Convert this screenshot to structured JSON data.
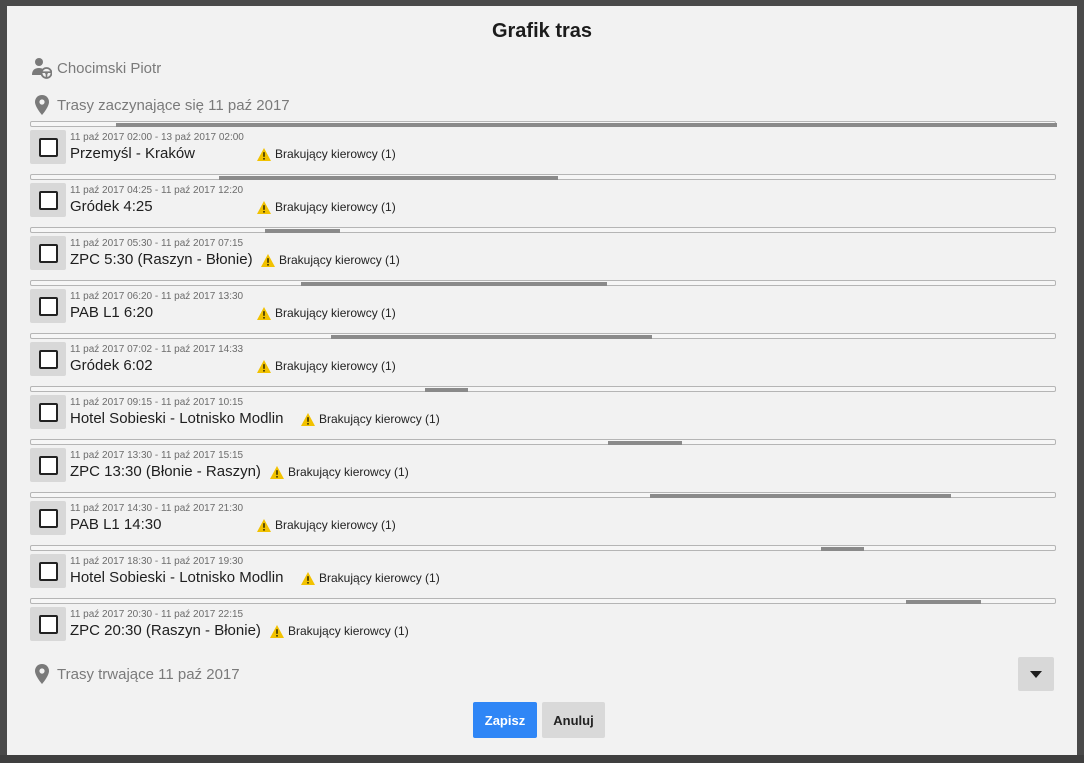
{
  "modal": {
    "title": "Grafik tras"
  },
  "driver": {
    "name": "Chocimski Piotr",
    "icon": "driver-steering-wheel-icon"
  },
  "start_date": {
    "label": "Trasy zaczynające się 11 paź 2017",
    "icon": "map-pin-icon"
  },
  "footer_filter": {
    "label": "Trasy trwające 11 paź 2017",
    "icon": "map-pin-icon"
  },
  "header_timeline": {
    "fill_start": 0.083,
    "fill_end": 1.0
  },
  "routes": [
    {
      "time": "11 paź 2017 02:00 - 13 paź 2017 02:00",
      "name": "Przemyśl - Kraków",
      "warning": "Brakujący kierowcy (1)",
      "fill_start": 0.183,
      "fill_end": 0.513,
      "checked": false
    },
    {
      "time": "11 paź 2017 04:25 - 11 paź 2017 12:20",
      "name": "Gródek 4:25",
      "warning": "Brakujący kierowcy (1)",
      "fill_start": 0.228,
      "fill_end": 0.301,
      "checked": false
    },
    {
      "time": "11 paź 2017 05:30 - 11 paź 2017 07:15",
      "name": "ZPC 5:30 (Raszyn - Błonie)",
      "warning": "Brakujący kierowcy (1)",
      "fill_start": 0.263,
      "fill_end": 0.561,
      "checked": false
    },
    {
      "time": "11 paź 2017 06:20 - 11 paź 2017 13:30",
      "name": "PAB L1 6:20",
      "warning": "Brakujący kierowcy (1)",
      "fill_start": 0.292,
      "fill_end": 0.605,
      "checked": false
    },
    {
      "time": "11 paź 2017 07:02 - 11 paź 2017 14:33",
      "name": "Gródek 6:02",
      "warning": "Brakujący kierowcy (1)",
      "fill_start": 0.384,
      "fill_end": 0.426,
      "checked": false
    },
    {
      "time": "11 paź 2017 09:15 - 11 paź 2017 10:15",
      "name": "Hotel Sobieski - Lotnisko Modlin",
      "warning": "Brakujący kierowcy (1)",
      "fill_start": 0.562,
      "fill_end": 0.634,
      "checked": false
    },
    {
      "time": "11 paź 2017 13:30 - 11 paź 2017 15:15",
      "name": "ZPC 13:30 (Błonie - Raszyn)",
      "warning": "Brakujący kierowcy (1)",
      "fill_start": 0.603,
      "fill_end": 0.896,
      "checked": false
    },
    {
      "time": "11 paź 2017 14:30 - 11 paź 2017 21:30",
      "name": "PAB L1 14:30",
      "warning": "Brakujący kierowcy (1)",
      "fill_start": 0.77,
      "fill_end": 0.812,
      "checked": false
    },
    {
      "time": "11 paź 2017 18:30 - 11 paź 2017 19:30",
      "name": "Hotel Sobieski - Lotnisko Modlin",
      "warning": "Brakujący kierowcy (1)",
      "fill_start": 0.853,
      "fill_end": 0.926,
      "checked": false
    },
    {
      "time": "11 paź 2017 20:30 - 11 paź 2017 22:15",
      "name": "ZPC 20:30 (Raszyn - Błonie)",
      "warning": "Brakujący kierowcy (1)",
      "fill_start": null,
      "fill_end": null,
      "checked": false
    }
  ],
  "actions": {
    "save_label": "Zapisz",
    "cancel_label": "Anuluj"
  },
  "colors": {
    "primary": "#2f86f6",
    "warning": "#f2c200",
    "timeline_fill": "#8a8a8a"
  }
}
